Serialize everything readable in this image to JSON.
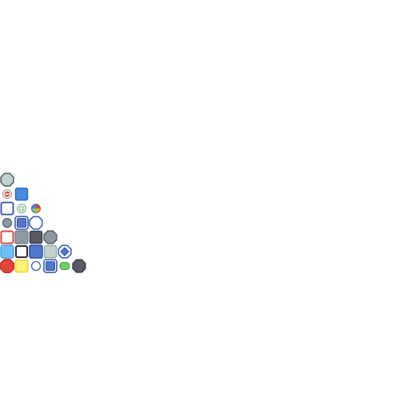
{
  "colors": {
    "red": "#e0463c",
    "red_edge": "#c2362c",
    "yellow": "#fff27a",
    "yellow_edge": "#f2d84a",
    "sky": "#6ec1f5",
    "sky_edge": "#3f8fd8",
    "blue": "#4f78cf",
    "blue_edge": "#2f4fa6",
    "bright_blue": "#4a8ae0",
    "bright_blue_edge": "#2f6fc6",
    "sage": "#c3d3cf",
    "sage_edge": "#4a68b4",
    "slate": "#8e99a3",
    "slate_edge": "#4f5a66",
    "charcoal": "#5a5a66",
    "charcoal_edge": "#3a3a46",
    "white": "#ffffff",
    "green": "#6ccf6c",
    "green_edge": "#3f9f3f",
    "outline_blue": "#3a64c4"
  },
  "rows": [
    [
      {
        "kind": "sage-octagon",
        "icon": "octagon-tile-icon"
      }
    ],
    [
      {
        "kind": "minus-badge",
        "icon": "minus-circle-icon"
      },
      {
        "kind": "bright-blue-square",
        "icon": "square-tile-icon"
      }
    ],
    [
      {
        "kind": "white-square",
        "icon": "square-outline-icon"
      },
      {
        "kind": "plus-badge",
        "icon": "plus-circle-icon"
      },
      {
        "kind": "rainbow-ball",
        "icon": "color-wheel-icon"
      }
    ],
    [
      {
        "kind": "slate-ball",
        "icon": "ball-icon"
      },
      {
        "kind": "blue-square-framed",
        "icon": "framed-square-icon"
      },
      {
        "kind": "white-octagon",
        "icon": "octagon-outline-icon"
      }
    ],
    [
      {
        "kind": "red-outline-square",
        "icon": "square-outline-icon"
      },
      {
        "kind": "slate-square",
        "icon": "square-tile-icon"
      },
      {
        "kind": "charcoal-square",
        "icon": "square-tile-icon"
      },
      {
        "kind": "slate-octagon",
        "icon": "octagon-tile-icon"
      }
    ],
    [
      {
        "kind": "sky-square",
        "icon": "square-tile-icon"
      },
      {
        "kind": "white-square-dark",
        "icon": "square-outline-icon"
      },
      {
        "kind": "blue-square",
        "icon": "square-tile-icon"
      },
      {
        "kind": "sage-square",
        "icon": "square-tile-icon"
      },
      {
        "kind": "blue-gem-octagon",
        "icon": "gem-icon"
      }
    ],
    [
      {
        "kind": "red-octagon",
        "icon": "octagon-tile-icon"
      },
      {
        "kind": "yellow-square",
        "icon": "square-tile-icon"
      },
      {
        "kind": "white-ball",
        "icon": "circle-outline-icon"
      },
      {
        "kind": "blue-square-framed",
        "icon": "framed-square-icon"
      },
      {
        "kind": "green-pill",
        "icon": "pill-icon"
      },
      {
        "kind": "charcoal-octagon",
        "icon": "octagon-tile-icon"
      }
    ]
  ]
}
